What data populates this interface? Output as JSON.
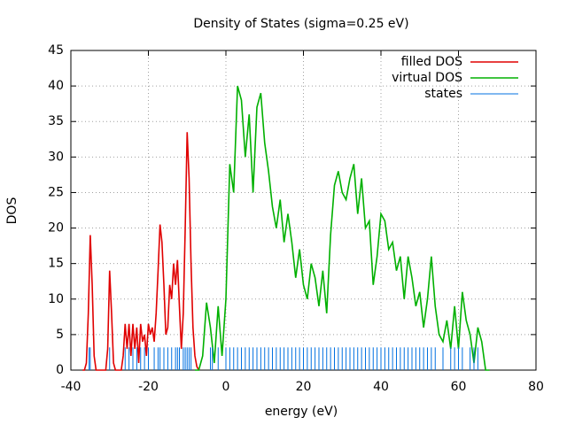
{
  "chart_data": {
    "type": "line",
    "title": "Density of States (sigma=0.25 eV)",
    "xlabel": "energy (eV)",
    "ylabel": "DOS",
    "xlim": [
      -40,
      80
    ],
    "xticks": [
      -40,
      -20,
      0,
      20,
      40,
      60,
      80
    ],
    "ylim": [
      0,
      45
    ],
    "yticks": [
      0,
      5,
      10,
      15,
      20,
      25,
      30,
      35,
      40,
      45
    ],
    "grid": true,
    "legend": "top-right",
    "series": [
      {
        "name": "filled DOS",
        "color": "#e00000",
        "style": "line",
        "x": [
          -37,
          -36.5,
          -36,
          -35.5,
          -35,
          -34.5,
          -34,
          -33.5,
          -33,
          -32.5,
          -32,
          -31.5,
          -31,
          -30.5,
          -30,
          -29.5,
          -29,
          -28.5,
          -28,
          -27.5,
          -27,
          -26.5,
          -26,
          -25.5,
          -25,
          -24.5,
          -24,
          -23.5,
          -23,
          -22.5,
          -22,
          -21.5,
          -21,
          -20.5,
          -20,
          -19.5,
          -19,
          -18.5,
          -18,
          -17.5,
          -17,
          -16.5,
          -16,
          -15.5,
          -15,
          -14.5,
          -14,
          -13.5,
          -13,
          -12.5,
          -12,
          -11.5,
          -11,
          -10.5,
          -10,
          -9.5,
          -9,
          -8.5,
          -8,
          -7.5,
          -7
        ],
        "values": [
          0,
          0,
          1,
          8,
          19,
          12,
          2,
          0,
          0,
          0,
          0,
          0,
          0,
          3,
          14,
          8,
          1,
          0,
          0,
          0,
          0,
          2,
          6.5,
          3,
          6.5,
          2,
          6.5,
          3,
          6,
          1,
          6.5,
          4,
          5,
          2,
          6.5,
          5,
          6,
          4,
          8,
          14,
          20.5,
          18,
          12,
          5,
          6,
          12,
          10,
          15,
          12,
          15.5,
          9,
          3,
          8,
          20,
          33.5,
          27,
          15,
          6,
          2,
          0.5,
          0
        ]
      },
      {
        "name": "virtual DOS",
        "color": "#00b000",
        "style": "line",
        "x": [
          -8,
          -7,
          -6,
          -5,
          -4,
          -3,
          -2,
          -1,
          0,
          1,
          2,
          3,
          4,
          5,
          6,
          7,
          8,
          9,
          10,
          11,
          12,
          13,
          14,
          15,
          16,
          17,
          18,
          19,
          20,
          21,
          22,
          23,
          24,
          25,
          26,
          27,
          28,
          29,
          30,
          31,
          32,
          33,
          34,
          35,
          36,
          37,
          38,
          39,
          40,
          41,
          42,
          43,
          44,
          45,
          46,
          47,
          48,
          49,
          50,
          51,
          52,
          53,
          54,
          55,
          56,
          57,
          58,
          59,
          60,
          61,
          62,
          63,
          64,
          65,
          66,
          67,
          68
        ],
        "values": [
          0,
          0,
          2,
          9.5,
          6,
          1,
          9,
          2,
          10,
          29,
          25,
          40,
          38,
          30,
          36,
          25,
          37,
          39,
          32,
          28,
          23,
          20,
          24,
          18,
          22,
          18,
          13,
          17,
          12,
          10,
          15,
          13,
          9,
          14,
          8,
          19,
          26,
          28,
          25,
          24,
          27,
          29,
          22,
          27,
          20,
          21,
          12,
          16,
          22,
          21,
          17,
          18,
          14,
          16,
          10,
          16,
          13,
          9,
          11,
          6,
          10,
          16,
          9,
          5,
          4,
          7,
          3,
          9,
          3,
          11,
          7,
          5,
          1,
          6,
          4,
          0,
          0
        ]
      },
      {
        "name": "states",
        "color": "#0070e0",
        "style": "impulses",
        "x": [
          -35.3,
          -35,
          -30,
          -26,
          -25,
          -24,
          -23,
          -22,
          -21,
          -20,
          -18.5,
          -17.5,
          -17,
          -16,
          -15,
          -14,
          -13,
          -12.5,
          -12,
          -11,
          -10.5,
          -10,
          -9.5,
          -9,
          -4,
          -3.5,
          -2,
          0,
          1,
          2,
          3,
          4,
          5,
          6,
          7,
          8,
          9,
          10,
          11,
          12,
          13,
          14,
          15,
          16,
          17,
          18,
          19,
          20,
          21,
          22,
          23,
          24,
          25,
          26,
          27,
          28,
          29,
          30,
          31,
          32,
          33,
          34,
          35,
          36,
          37,
          38,
          39,
          40,
          41,
          42,
          43,
          44,
          45,
          46,
          47,
          48,
          49,
          50,
          51,
          52,
          53,
          54,
          56,
          58,
          59,
          60,
          61,
          63,
          64,
          65
        ],
        "values": [
          3.2,
          3.2,
          3.2,
          3.2,
          3.2,
          3.2,
          3.2,
          3.2,
          3.2,
          3.2,
          3.2,
          3.2,
          3.2,
          3.2,
          3.2,
          3.2,
          3.2,
          3.2,
          3.2,
          3.2,
          3.2,
          3.2,
          3.2,
          3.2,
          3.2,
          3.2,
          3.2,
          3.2,
          3.2,
          3.2,
          3.2,
          3.2,
          3.2,
          3.2,
          3.2,
          3.2,
          3.2,
          3.2,
          3.2,
          3.2,
          3.2,
          3.2,
          3.2,
          3.2,
          3.2,
          3.2,
          3.2,
          3.2,
          3.2,
          3.2,
          3.2,
          3.2,
          3.2,
          3.2,
          3.2,
          3.2,
          3.2,
          3.2,
          3.2,
          3.2,
          3.2,
          3.2,
          3.2,
          3.2,
          3.2,
          3.2,
          3.2,
          3.2,
          3.2,
          3.2,
          3.2,
          3.2,
          3.2,
          3.2,
          3.2,
          3.2,
          3.2,
          3.2,
          3.2,
          3.2,
          3.2,
          3.2,
          3.2,
          3.2,
          3.2,
          3.2,
          3.2,
          3.2,
          3.2,
          3.2
        ]
      }
    ]
  }
}
